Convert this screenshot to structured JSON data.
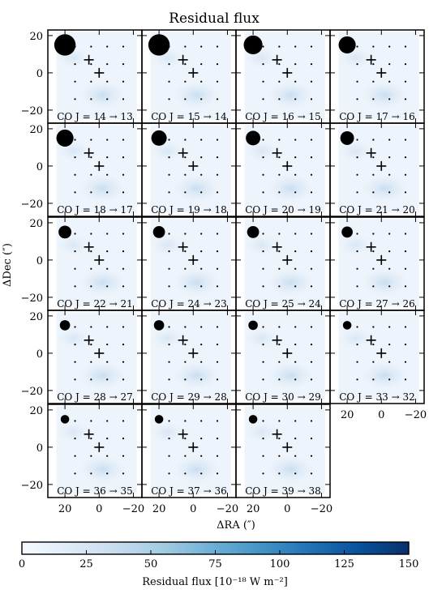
{
  "chart_data": {
    "type": "heatmap",
    "title": "Residual flux",
    "xlabel": "ΔRA (″)",
    "ylabel": "ΔDec (″)",
    "xlim": [
      30,
      -25
    ],
    "ylim": [
      -27,
      23
    ],
    "xticks": [
      {
        "value": 20,
        "label": "20"
      },
      {
        "value": 0,
        "label": "0"
      },
      {
        "value": -20,
        "label": "−20"
      }
    ],
    "yticks": [
      {
        "value": 20,
        "label": "20"
      },
      {
        "value": 0,
        "label": "0"
      },
      {
        "value": -20,
        "label": "−20"
      }
    ],
    "colorbar": {
      "label": "Residual flux [10⁻¹⁸ W m⁻²]",
      "min": 0,
      "max": 150,
      "ticks": [
        "0",
        "25",
        "50",
        "75",
        "100",
        "125",
        "150"
      ],
      "colormap": "Blues"
    },
    "markers": {
      "plus_positions": [
        [
          6,
          7
        ],
        [
          0,
          0
        ]
      ],
      "grid_dot_spacing": 9.4,
      "grid_dot_range": [
        -23,
        23
      ]
    },
    "panels": [
      {
        "label": "CO J = 14 → 13",
        "beam_diameter": 12.5
      },
      {
        "label": "CO J = 15 → 14",
        "beam_diameter": 12.5
      },
      {
        "label": "CO J = 16 → 15",
        "beam_diameter": 11
      },
      {
        "label": "CO J = 17 → 16",
        "beam_diameter": 10
      },
      {
        "label": "CO J = 18 → 17",
        "beam_diameter": 10
      },
      {
        "label": "CO J = 19 → 18",
        "beam_diameter": 9
      },
      {
        "label": "CO J = 20 → 19",
        "beam_diameter": 8.5
      },
      {
        "label": "CO J = 21 → 20",
        "beam_diameter": 8
      },
      {
        "label": "CO J = 22 → 21",
        "beam_diameter": 7.5
      },
      {
        "label": "CO J = 24 → 23",
        "beam_diameter": 7
      },
      {
        "label": "CO J = 25 → 24",
        "beam_diameter": 7
      },
      {
        "label": "CO J = 27 → 26",
        "beam_diameter": 6.5
      },
      {
        "label": "CO J = 28 → 27",
        "beam_diameter": 6
      },
      {
        "label": "CO J = 29 → 28",
        "beam_diameter": 6
      },
      {
        "label": "CO J = 30 → 29",
        "beam_diameter": 5.5
      },
      {
        "label": "CO J = 33 → 32",
        "beam_diameter": 5
      },
      {
        "label": "CO J = 36 → 35",
        "beam_diameter": 5
      },
      {
        "label": "CO J = 37 → 36",
        "beam_diameter": 5
      },
      {
        "label": "CO J = 39 → 38",
        "beam_diameter": 5
      }
    ],
    "grid": false
  }
}
